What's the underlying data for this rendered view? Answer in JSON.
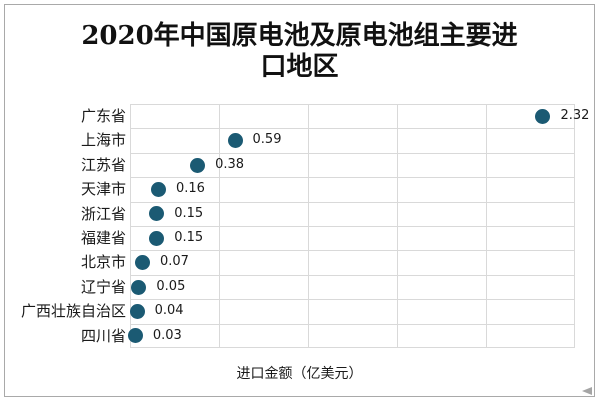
{
  "chart_data": {
    "type": "scatter",
    "title": "2020年中国原电池及原电池组主要进口地区",
    "xlabel": "进口金额（亿美元）",
    "categories": [
      "广东省",
      "上海市",
      "江苏省",
      "天津市",
      "浙江省",
      "福建省",
      "北京市",
      "辽宁省",
      "广西壮族自治区",
      "四川省"
    ],
    "values": [
      2.32,
      0.59,
      0.38,
      0.16,
      0.15,
      0.15,
      0.07,
      0.05,
      0.04,
      0.03
    ],
    "value_labels": [
      "2.32",
      "0.59",
      "0.38",
      "0.16",
      "0.15",
      "0.15",
      "0.07",
      "0.05",
      "0.04",
      "0.03"
    ],
    "xlim": [
      0,
      2.5
    ],
    "grid_interval": 0.5,
    "grid": "on",
    "legend": "none",
    "colors": {
      "dot": "#1b5a73",
      "gridline": "#d9d9d9",
      "text": "#1a1a1a",
      "frame_border": "#a9a9a9"
    }
  }
}
